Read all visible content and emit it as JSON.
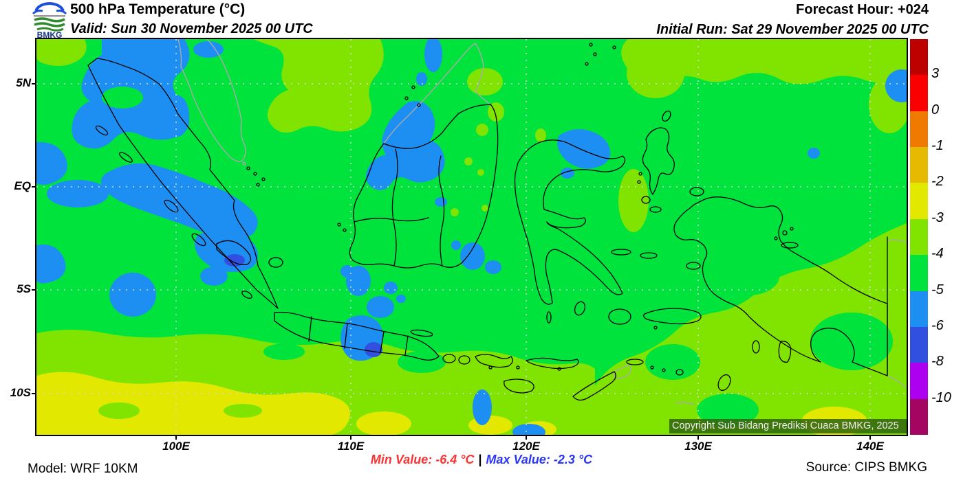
{
  "header": {
    "title": "500 hPa Temperature (°C)",
    "valid": "Valid: Sun 30 November 2025 00 UTC",
    "forecast_hour": "Forecast Hour: +024",
    "initial_run": "Initial Run: Sat 29 November 2025 00 UTC",
    "logo_text": "BMKG"
  },
  "map": {
    "lat_ticks": [
      "5N",
      "EQ",
      "5S",
      "10S"
    ],
    "lon_ticks": [
      "100E",
      "110E",
      "120E",
      "130E",
      "140E"
    ],
    "copyright": "Copyright Sub Bidang Prediksi Cuaca BMKG, 2025"
  },
  "colorbar": {
    "labels": [
      "3",
      "0",
      "-1",
      "-2",
      "-3",
      "-4",
      "-5",
      "-6",
      "-8",
      "-10"
    ],
    "colors": [
      "#bd0000",
      "#fa0000",
      "#f07a00",
      "#e6ba00",
      "#e2e800",
      "#80e400",
      "#00e33c",
      "#1e8ff2",
      "#3250e0",
      "#ae00f0",
      "#a30560"
    ]
  },
  "colors": {
    "green": "#00e33c",
    "chartreuse": "#80e400",
    "yellow": "#e2e800",
    "blue": "#1e8ff2",
    "royal": "#3250e0",
    "coast": "#000000",
    "foreign": "#a9a9a9",
    "grid": "#d8d8d8",
    "logo_blue": "#1f4fd8",
    "logo_green": "#2e8b2e",
    "logo_navy": "#16338f"
  },
  "footer": {
    "model": "Model: WRF 10KM",
    "min_label": "Min Value: -6.4 °C",
    "separator": "|",
    "max_label": "Max Value: -2.3 °C",
    "source": "Source: CIPS BMKG",
    "min_color": "#fb3232",
    "max_color": "#2a35f5"
  }
}
